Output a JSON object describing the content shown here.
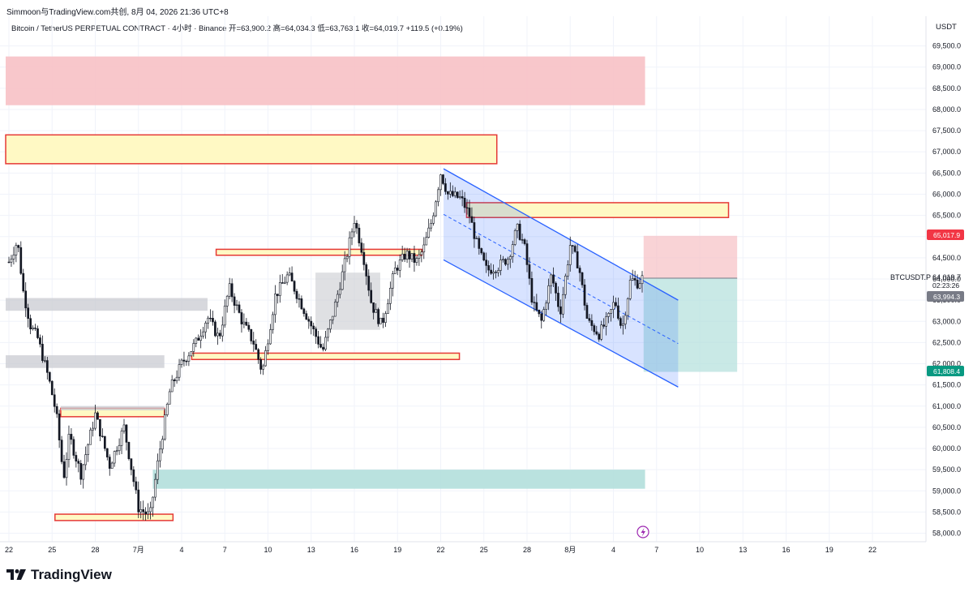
{
  "header": {
    "published_line": "Simmoon与TradingView.com共创, 8月 04, 2026 21:36 UTC+8",
    "legend_line": "Bitcoin / TetherUS PERPETUAL CONTRACT · 4小时 · Binance  开=63,900.2  高=64,034.3  低=63,763.1  收=64,019.7  +119.5 (+0.19%)"
  },
  "price_axis": {
    "currency": "USDT",
    "symbol_label": "BTCUSDT.P",
    "last_price": "64,019.7",
    "countdown": "02:23:26",
    "tag_upper": "65,017.9",
    "tag_mid": "63,994.3",
    "tag_lower": "61,808.4"
  },
  "branding": {
    "name": "TradingView"
  },
  "colors": {
    "up": "#ffffff",
    "down": "#131722",
    "zone_red": "#f7c1c5",
    "zone_green": "#b2dfdb",
    "zone_gray": "#c9cbd1",
    "zone_yellow_fill": "#fff9c4",
    "zone_yellow_border": "#e53935",
    "channel": "#2962ff",
    "tag_red": "#f23645",
    "tag_green": "#089981",
    "tag_gray": "#787b86"
  },
  "chart_data": {
    "type": "candlestick",
    "y_range": [
      57800,
      70200
    ],
    "y_ticks": [
      58000,
      58500,
      59000,
      59500,
      60000,
      60500,
      61000,
      61500,
      62000,
      62500,
      63000,
      63500,
      64000,
      64500,
      65000,
      65500,
      66000,
      66500,
      67000,
      67500,
      68000,
      68500,
      69000,
      69500
    ],
    "y_tick_labels": [
      "58,000.0",
      "58,500.0",
      "59,000.0",
      "59,500.0",
      "60,000.0",
      "60,500.0",
      "61,000.0",
      "61,500.0",
      "62,000.0",
      "62,500.0",
      "63,000.0",
      "63,500.0",
      "64,000.0",
      "64,500.0",
      "65,000.0",
      "65,500.0",
      "66,000.0",
      "66,500.0",
      "67,000.0",
      "67,500.0",
      "68,000.0",
      "68,500.0",
      "69,000.0",
      "69,500.0"
    ],
    "x_range": [
      0,
      82
    ],
    "x_ticks": [
      {
        "label": "22",
        "t": 0
      },
      {
        "label": "25",
        "t": 3
      },
      {
        "label": "28",
        "t": 6
      },
      {
        "label": "7月",
        "t": 9
      },
      {
        "label": "4",
        "t": 12
      },
      {
        "label": "7",
        "t": 15
      },
      {
        "label": "10",
        "t": 18
      },
      {
        "label": "13",
        "t": 21
      },
      {
        "label": "16",
        "t": 24
      },
      {
        "label": "19",
        "t": 27
      },
      {
        "label": "22",
        "t": 30
      },
      {
        "label": "25",
        "t": 33
      },
      {
        "label": "28",
        "t": 36
      },
      {
        "label": "8月",
        "t": 39
      },
      {
        "label": "4",
        "t": 42
      },
      {
        "label": "7",
        "t": 45
      },
      {
        "label": "10",
        "t": 48
      },
      {
        "label": "13",
        "t": 51
      },
      {
        "label": "16",
        "t": 54
      },
      {
        "label": "19",
        "t": 57
      },
      {
        "label": "22",
        "t": 60
      }
    ],
    "anchors": [
      [
        0,
        64400
      ],
      [
        0.6,
        64900
      ],
      [
        1.0,
        63700
      ],
      [
        1.5,
        62900
      ],
      [
        2.0,
        62600
      ],
      [
        2.8,
        61600
      ],
      [
        3.3,
        60800
      ],
      [
        3.8,
        59300
      ],
      [
        4.2,
        60300
      ],
      [
        5.0,
        59400
      ],
      [
        6.0,
        60800
      ],
      [
        7.0,
        59600
      ],
      [
        8.0,
        60500
      ],
      [
        9.0,
        58600
      ],
      [
        9.8,
        58400
      ],
      [
        10.4,
        59800
      ],
      [
        11.2,
        61400
      ],
      [
        12.0,
        62000
      ],
      [
        13.0,
        62500
      ],
      [
        13.8,
        63100
      ],
      [
        14.6,
        62600
      ],
      [
        15.3,
        63800
      ],
      [
        16.2,
        63000
      ],
      [
        17.0,
        62500
      ],
      [
        17.6,
        61800
      ],
      [
        18.5,
        63600
      ],
      [
        19.4,
        64100
      ],
      [
        20.2,
        63500
      ],
      [
        21.0,
        62900
      ],
      [
        21.8,
        62300
      ],
      [
        22.6,
        63300
      ],
      [
        23.5,
        64600
      ],
      [
        24.0,
        65400
      ],
      [
        24.6,
        64600
      ],
      [
        25.2,
        63400
      ],
      [
        25.9,
        62900
      ],
      [
        26.8,
        64200
      ],
      [
        27.6,
        64600
      ],
      [
        28.3,
        64400
      ],
      [
        28.8,
        64700
      ],
      [
        29.4,
        65400
      ],
      [
        30.0,
        66500
      ],
      [
        30.5,
        66000
      ],
      [
        31.4,
        65900
      ],
      [
        32.0,
        65500
      ],
      [
        32.6,
        64700
      ],
      [
        33.2,
        64200
      ],
      [
        34.0,
        64300
      ],
      [
        34.7,
        64500
      ],
      [
        35.3,
        65200
      ],
      [
        35.8,
        64800
      ],
      [
        36.4,
        63400
      ],
      [
        37.0,
        63000
      ],
      [
        37.7,
        64100
      ],
      [
        38.3,
        63200
      ],
      [
        39.0,
        64800
      ],
      [
        39.6,
        64300
      ],
      [
        40.2,
        63000
      ],
      [
        41.0,
        62700
      ],
      [
        41.7,
        63100
      ],
      [
        42.1,
        63500
      ],
      [
        42.6,
        62800
      ],
      [
        43.2,
        64000
      ],
      [
        43.7,
        63900
      ],
      [
        44.0,
        64019.7
      ]
    ]
  }
}
